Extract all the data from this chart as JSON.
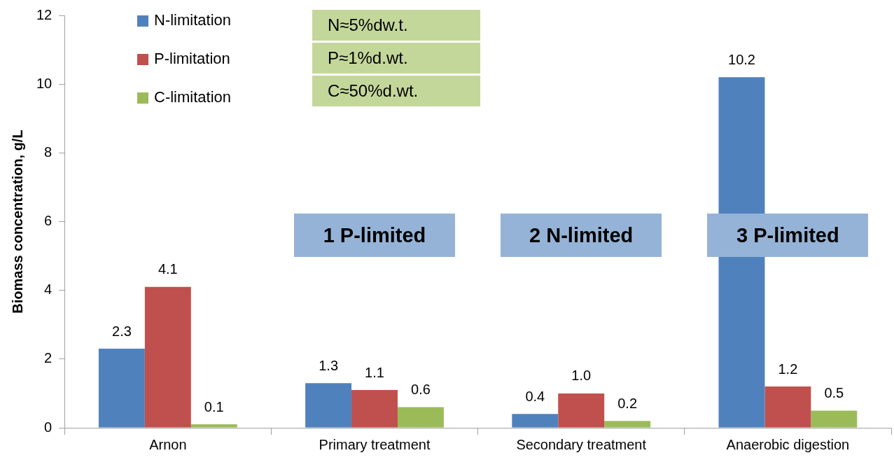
{
  "chart_data": {
    "type": "bar",
    "ylabel": "Biomass concentration, g/L",
    "categories": [
      "Arnon",
      "Primary treatment",
      "Secondary treatment",
      "Anaerobic digestion"
    ],
    "series": [
      {
        "name": "N-limitation",
        "color": "#4f81bd",
        "values": [
          2.3,
          1.3,
          0.4,
          10.2
        ],
        "value_labels": [
          "2.3",
          "1.3",
          "0.4",
          "10.2"
        ]
      },
      {
        "name": "P-limitation",
        "color": "#c0504d",
        "values": [
          4.1,
          1.1,
          1.0,
          1.2
        ],
        "value_labels": [
          "4.1",
          "1.1",
          "1.0",
          "1.2"
        ]
      },
      {
        "name": "C-limitation",
        "color": "#9bbb59",
        "values": [
          0.1,
          0.6,
          0.2,
          0.5
        ],
        "value_labels": [
          "0.1",
          "0.6",
          "0.2",
          "0.5"
        ]
      }
    ],
    "ylim": [
      0,
      12
    ],
    "yticks": [
      0,
      2,
      4,
      6,
      8,
      10,
      12
    ],
    "grid": false,
    "legend": "top left",
    "annotations": [
      "N≈5%dw.t.",
      "P≈1%d.wt.",
      "C≈50%d.wt.",
      "1 P-limited",
      "2 N-limited",
      "3 P-limited"
    ]
  }
}
